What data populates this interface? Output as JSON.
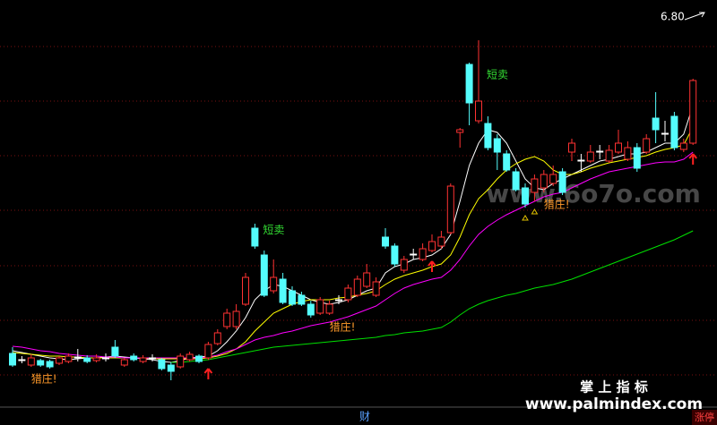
{
  "chart_data": {
    "type": "candlestick",
    "price_label": "6.80",
    "ylim": [
      2.43,
      6.8
    ],
    "grid_levels": [
      6.46,
      5.85,
      5.24,
      4.63,
      4.01,
      3.4,
      2.79
    ],
    "up_color": "#ff3232",
    "down_color": "#54fcfc",
    "doji_color": "#ffffff",
    "open": [
      3.03,
      2.95,
      2.9,
      2.95,
      2.94,
      2.92,
      2.94,
      2.98,
      2.98,
      2.95,
      2.98,
      3.1,
      2.9,
      3.0,
      2.94,
      2.98,
      2.96,
      2.9,
      2.88,
      2.96,
      3.0,
      2.98,
      3.14,
      3.33,
      3.33,
      3.58,
      4.43,
      4.13,
      3.73,
      3.86,
      3.73,
      3.68,
      3.58,
      3.48,
      3.48,
      3.62,
      3.63,
      3.68,
      3.78,
      3.68,
      4.33,
      4.23,
      3.96,
      4.13,
      4.08,
      4.18,
      4.23,
      4.38,
      5.5,
      6.26,
      5.63,
      5.6,
      5.43,
      5.26,
      5.06,
      4.88,
      4.83,
      4.88,
      4.93,
      5.06,
      5.28,
      5.18,
      5.18,
      5.28,
      5.18,
      5.28,
      5.2,
      5.33,
      5.28,
      5.66,
      5.48,
      5.68,
      5.31,
      5.38
    ],
    "high": [
      3.1,
      3.0,
      3.02,
      2.97,
      2.96,
      3.0,
      3.03,
      3.08,
      3.01,
      3.02,
      3.03,
      3.18,
      2.98,
      3.03,
      3.01,
      3.02,
      2.98,
      2.93,
      3.03,
      3.05,
      3.02,
      3.16,
      3.3,
      3.53,
      3.58,
      3.93,
      4.48,
      4.18,
      4.08,
      3.93,
      3.78,
      3.72,
      3.62,
      3.66,
      3.62,
      3.68,
      3.8,
      3.9,
      4.03,
      3.88,
      4.43,
      4.26,
      4.12,
      4.2,
      4.26,
      4.36,
      4.4,
      4.93,
      5.55,
      6.28,
      6.53,
      5.68,
      5.48,
      5.3,
      5.1,
      4.93,
      5.03,
      5.08,
      5.13,
      5.1,
      5.43,
      5.26,
      5.36,
      5.36,
      5.36,
      5.53,
      5.4,
      5.38,
      5.48,
      5.95,
      5.63,
      5.73,
      5.43,
      6.1
    ],
    "low": [
      2.88,
      2.92,
      2.88,
      2.88,
      2.86,
      2.9,
      2.92,
      2.94,
      2.92,
      2.93,
      2.94,
      2.98,
      2.88,
      2.94,
      2.92,
      2.94,
      2.84,
      2.73,
      2.86,
      2.94,
      2.92,
      2.96,
      3.12,
      3.3,
      3.3,
      3.56,
      4.2,
      3.66,
      3.7,
      3.58,
      3.56,
      3.56,
      3.43,
      3.46,
      3.46,
      3.58,
      3.6,
      3.66,
      3.76,
      3.66,
      4.2,
      4.0,
      3.93,
      4.08,
      4.06,
      4.16,
      4.2,
      4.36,
      5.33,
      5.58,
      5.6,
      5.3,
      5.08,
      5.06,
      4.84,
      4.66,
      4.73,
      4.83,
      4.9,
      4.8,
      5.18,
      5.06,
      5.16,
      5.2,
      5.16,
      5.26,
      5.18,
      5.06,
      5.26,
      5.38,
      5.4,
      5.3,
      5.28,
      5.36
    ],
    "close": [
      2.9,
      2.96,
      2.98,
      2.9,
      2.88,
      2.98,
      3.0,
      2.99,
      2.94,
      2.98,
      2.97,
      3.0,
      2.96,
      2.96,
      2.98,
      2.97,
      2.86,
      2.83,
      3.0,
      3.02,
      2.94,
      3.13,
      3.26,
      3.48,
      3.5,
      3.88,
      4.23,
      3.68,
      3.88,
      3.6,
      3.58,
      3.58,
      3.46,
      3.63,
      3.58,
      3.63,
      3.76,
      3.86,
      3.93,
      3.83,
      4.23,
      4.03,
      4.08,
      4.14,
      4.2,
      4.28,
      4.33,
      4.9,
      5.53,
      5.83,
      5.85,
      5.33,
      5.28,
      5.08,
      4.86,
      4.7,
      4.98,
      5.03,
      5.03,
      4.83,
      5.38,
      5.19,
      5.28,
      5.29,
      5.3,
      5.38,
      5.33,
      5.1,
      5.43,
      5.53,
      5.49,
      5.33,
      5.38,
      6.08
    ],
    "lines": [
      {
        "color": "#ffffff",
        "values": [
          3.06,
          3.04,
          3.02,
          3.0,
          2.98,
          2.97,
          2.96,
          2.97,
          2.98,
          2.98,
          2.99,
          3.0,
          2.99,
          2.98,
          2.97,
          2.96,
          2.94,
          2.93,
          2.95,
          2.98,
          2.99,
          3.0,
          3.06,
          3.16,
          3.28,
          3.43,
          3.63,
          3.73,
          3.8,
          3.78,
          3.73,
          3.68,
          3.63,
          3.6,
          3.58,
          3.6,
          3.63,
          3.68,
          3.73,
          3.76,
          3.93,
          4.0,
          4.03,
          4.08,
          4.1,
          4.13,
          4.2,
          4.36,
          4.73,
          5.13,
          5.38,
          5.53,
          5.5,
          5.38,
          5.18,
          4.98,
          4.88,
          4.86,
          4.93,
          4.98,
          5.03,
          5.08,
          5.13,
          5.18,
          5.2,
          5.23,
          5.26,
          5.26,
          5.28,
          5.33,
          5.38,
          5.38,
          5.48,
          5.8
        ]
      },
      {
        "color": "#ffff00",
        "values": [
          3.04,
          3.03,
          3.02,
          3.01,
          3.0,
          3.0,
          2.99,
          2.99,
          2.98,
          2.98,
          2.98,
          2.98,
          2.98,
          2.98,
          2.98,
          2.97,
          2.97,
          2.97,
          2.97,
          2.97,
          2.97,
          2.98,
          3.0,
          3.03,
          3.08,
          3.16,
          3.28,
          3.38,
          3.48,
          3.53,
          3.58,
          3.61,
          3.63,
          3.63,
          3.63,
          3.65,
          3.66,
          3.68,
          3.7,
          3.73,
          3.8,
          3.86,
          3.9,
          3.93,
          3.96,
          4.0,
          4.03,
          4.13,
          4.33,
          4.58,
          4.76,
          4.86,
          4.98,
          5.08,
          5.15,
          5.2,
          5.23,
          5.18,
          5.08,
          5.03,
          5.03,
          5.06,
          5.1,
          5.13,
          5.16,
          5.18,
          5.2,
          5.22,
          5.24,
          5.28,
          5.31,
          5.33,
          5.36,
          5.56
        ]
      },
      {
        "color": "#ff00ff",
        "values": [
          3.11,
          3.1,
          3.08,
          3.06,
          3.05,
          3.03,
          3.02,
          3.01,
          3.0,
          3.0,
          2.99,
          2.99,
          2.98,
          2.98,
          2.98,
          2.98,
          2.98,
          2.98,
          2.98,
          2.98,
          2.98,
          2.99,
          3.01,
          3.05,
          3.08,
          3.13,
          3.18,
          3.21,
          3.23,
          3.26,
          3.28,
          3.31,
          3.34,
          3.36,
          3.38,
          3.41,
          3.44,
          3.48,
          3.52,
          3.56,
          3.63,
          3.7,
          3.76,
          3.8,
          3.83,
          3.86,
          3.88,
          3.96,
          4.08,
          4.23,
          4.36,
          4.45,
          4.52,
          4.58,
          4.63,
          4.68,
          4.73,
          4.78,
          4.81,
          4.83,
          4.88,
          4.93,
          4.98,
          5.02,
          5.06,
          5.08,
          5.1,
          5.12,
          5.14,
          5.16,
          5.17,
          5.17,
          5.2,
          5.28
        ]
      },
      {
        "color": "#00e000",
        "values": [
          null,
          null,
          null,
          null,
          null,
          null,
          null,
          null,
          null,
          null,
          null,
          null,
          null,
          null,
          null,
          null,
          null,
          2.93,
          2.93,
          2.94,
          2.95,
          2.96,
          2.98,
          3.0,
          3.02,
          3.04,
          3.06,
          3.08,
          3.1,
          3.11,
          3.12,
          3.13,
          3.14,
          3.15,
          3.16,
          3.17,
          3.18,
          3.19,
          3.2,
          3.21,
          3.23,
          3.24,
          3.26,
          3.27,
          3.28,
          3.3,
          3.32,
          3.38,
          3.46,
          3.53,
          3.58,
          3.62,
          3.65,
          3.68,
          3.7,
          3.73,
          3.76,
          3.78,
          3.8,
          3.83,
          3.86,
          3.9,
          3.94,
          3.98,
          4.02,
          4.06,
          4.1,
          4.14,
          4.18,
          4.22,
          4.26,
          4.3,
          4.35,
          4.4
        ]
      }
    ],
    "annotations": [
      {
        "text": "短卖",
        "index": 26,
        "kind": "sell"
      },
      {
        "text": "短卖",
        "index": 50,
        "kind": "sell"
      },
      {
        "text": "猎庄!",
        "index": 2,
        "kind": "hunt"
      },
      {
        "text": "猎庄!",
        "index": 34,
        "kind": "hunt"
      },
      {
        "text": "猎庄!",
        "index": 57,
        "kind": "hunt"
      }
    ],
    "up_arrows": [
      21,
      45,
      73
    ],
    "triangles": [
      55,
      56
    ],
    "watermarks": [
      "www.6o7o.com",
      "掌 上 指 标",
      "www.palmindex.com"
    ],
    "footer_left": "财",
    "footer_right": "涨停"
  }
}
